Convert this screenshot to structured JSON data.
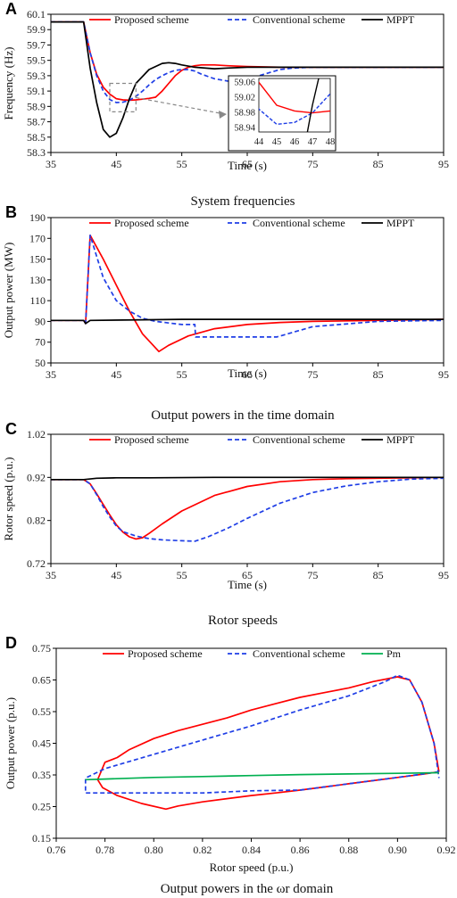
{
  "legend": {
    "proposed": "Proposed scheme",
    "conventional": "Conventional scheme",
    "mppt": "MPPT",
    "pm": "Pm"
  },
  "colors": {
    "proposed": "#ff0000",
    "conventional": "#1f3ee6",
    "mppt": "#000000",
    "pm": "#00b050"
  },
  "chart_data": [
    {
      "panel": "A",
      "type": "line",
      "caption": "System frequencies",
      "xlabel": "Time (s)",
      "ylabel": "Frequency (Hz)",
      "xlim": [
        35,
        95
      ],
      "ylim": [
        58.3,
        60.1
      ],
      "xticks": [
        "35",
        "45",
        "55",
        "65",
        "75",
        "85",
        "95"
      ],
      "yticks": [
        "58.3",
        "58.5",
        "58.7",
        "58.9",
        "59.1",
        "59.3",
        "59.5",
        "59.7",
        "59.9",
        "60.1"
      ],
      "series": [
        {
          "name": "Proposed scheme",
          "x": [
            35,
            40,
            41,
            42,
            43,
            44,
            45,
            46,
            47,
            48,
            49,
            50,
            51,
            52,
            53,
            54,
            55,
            56,
            57,
            58,
            59,
            60,
            62,
            65,
            70,
            75,
            80,
            85,
            95
          ],
          "y": [
            60.0,
            60.0,
            59.6,
            59.32,
            59.15,
            59.06,
            59.0,
            58.985,
            58.98,
            58.985,
            58.995,
            59.005,
            59.02,
            59.1,
            59.2,
            59.3,
            59.37,
            59.41,
            59.43,
            59.44,
            59.44,
            59.44,
            59.43,
            59.42,
            59.41,
            59.41,
            59.41,
            59.41,
            59.41
          ]
        },
        {
          "name": "Conventional scheme",
          "x": [
            35,
            40,
            41,
            42,
            43,
            44,
            45,
            46,
            47,
            48,
            49,
            50,
            51,
            52,
            53,
            54,
            55,
            56,
            57,
            58,
            60,
            62,
            64,
            66,
            68,
            70,
            72,
            75,
            80,
            95
          ],
          "y": [
            60.0,
            60.0,
            59.6,
            59.3,
            59.1,
            58.99,
            58.95,
            58.955,
            58.98,
            59.03,
            59.1,
            59.18,
            59.25,
            59.3,
            59.34,
            59.37,
            59.38,
            59.38,
            59.36,
            59.32,
            59.26,
            59.23,
            59.24,
            59.28,
            59.33,
            59.38,
            59.4,
            59.41,
            59.41,
            59.41
          ]
        },
        {
          "name": "MPPT",
          "x": [
            35,
            40,
            41,
            42,
            43,
            44,
            45,
            46,
            47,
            48,
            50,
            52,
            53,
            54,
            55,
            57,
            60,
            62,
            65,
            70,
            95
          ],
          "y": [
            60.0,
            60.0,
            59.4,
            58.95,
            58.6,
            58.5,
            58.55,
            58.75,
            59.0,
            59.2,
            59.38,
            59.46,
            59.47,
            59.46,
            59.44,
            59.41,
            59.39,
            59.4,
            59.41,
            59.41,
            59.41
          ]
        }
      ],
      "inset": {
        "xlim": [
          44,
          48
        ],
        "ylim": [
          58.93,
          59.07
        ],
        "xticks": [
          "44",
          "45",
          "46",
          "47",
          "48"
        ],
        "yticks": [
          "59.06",
          "59.02",
          "58.98",
          "58.94"
        ]
      }
    },
    {
      "panel": "B",
      "type": "line",
      "caption": "Output powers in the time domain",
      "xlabel": "Time (s)",
      "ylabel": "Output power (MW)",
      "xlim": [
        35,
        95
      ],
      "ylim": [
        50,
        190
      ],
      "xticks": [
        "35",
        "45",
        "55",
        "65",
        "75",
        "85",
        "95"
      ],
      "yticks": [
        "50",
        "70",
        "90",
        "110",
        "130",
        "150",
        "170",
        "190"
      ],
      "series": [
        {
          "name": "Proposed scheme",
          "x": [
            35,
            40,
            40.3,
            41,
            43,
            45,
            47,
            49,
            51.5,
            53,
            56,
            60,
            65,
            70,
            75,
            85,
            95
          ],
          "y": [
            91,
            91,
            88,
            173,
            150,
            125,
            100,
            78,
            61,
            67,
            76,
            83,
            87,
            89,
            90,
            91,
            92
          ]
        },
        {
          "name": "Conventional scheme",
          "x": [
            35,
            40,
            40.3,
            41,
            43,
            45,
            47,
            49,
            51,
            55,
            57,
            57.1,
            60,
            69.5,
            75,
            85,
            95
          ],
          "y": [
            91,
            91,
            88,
            173,
            132,
            110,
            100,
            93,
            90,
            87,
            87,
            75,
            75,
            75,
            85,
            90,
            91
          ]
        },
        {
          "name": "MPPT",
          "x": [
            35,
            40,
            40.3,
            41,
            55,
            70,
            95
          ],
          "y": [
            91,
            91,
            88,
            91,
            92,
            92,
            92
          ]
        }
      ]
    },
    {
      "panel": "C",
      "type": "line",
      "caption": "Rotor speeds",
      "xlabel": "Time (s)",
      "ylabel": "Rotor speed (p.u.)",
      "xlim": [
        35,
        95
      ],
      "ylim": [
        0.72,
        1.02
      ],
      "xticks": [
        "35",
        "45",
        "55",
        "65",
        "75",
        "85",
        "95"
      ],
      "yticks": [
        "0.72",
        "0.82",
        "0.92",
        "1.02"
      ],
      "series": [
        {
          "name": "Proposed scheme",
          "x": [
            35,
            40,
            41,
            42,
            43,
            44,
            45,
            46,
            47,
            48,
            49,
            50,
            52,
            55,
            60,
            65,
            70,
            75,
            80,
            85,
            90,
            95
          ],
          "y": [
            0.915,
            0.915,
            0.905,
            0.882,
            0.857,
            0.833,
            0.81,
            0.793,
            0.782,
            0.777,
            0.78,
            0.79,
            0.812,
            0.842,
            0.878,
            0.899,
            0.91,
            0.915,
            0.917,
            0.918,
            0.919,
            0.92
          ]
        },
        {
          "name": "Conventional scheme",
          "x": [
            35,
            40,
            41,
            42,
            43,
            44,
            45,
            46,
            48,
            50,
            52,
            55,
            57,
            59,
            62,
            65,
            70,
            75,
            80,
            85,
            90,
            95
          ],
          "y": [
            0.915,
            0.915,
            0.905,
            0.88,
            0.852,
            0.828,
            0.807,
            0.794,
            0.784,
            0.778,
            0.775,
            0.773,
            0.772,
            0.782,
            0.802,
            0.825,
            0.86,
            0.885,
            0.9,
            0.91,
            0.916,
            0.918
          ]
        },
        {
          "name": "MPPT",
          "x": [
            35,
            40,
            42,
            45,
            50,
            60,
            95
          ],
          "y": [
            0.915,
            0.915,
            0.918,
            0.919,
            0.919,
            0.92,
            0.92
          ]
        }
      ]
    },
    {
      "panel": "D",
      "type": "line",
      "caption": "Output powers in the ωr domain",
      "xlabel": "Rotor speed (p.u.)",
      "ylabel": "Output power (p.u.)",
      "xlim": [
        0.76,
        0.92
      ],
      "ylim": [
        0.15,
        0.75
      ],
      "xticks": [
        "0.76",
        "0.78",
        "0.80",
        "0.82",
        "0.84",
        "0.86",
        "0.88",
        "0.90",
        "0.92"
      ],
      "yticks": [
        "0.15",
        "0.25",
        "0.35",
        "0.45",
        "0.55",
        "0.65",
        "0.75"
      ],
      "series": [
        {
          "name": "Proposed scheme",
          "x": [
            0.917,
            0.91,
            0.9,
            0.89,
            0.88,
            0.87,
            0.86,
            0.85,
            0.84,
            0.83,
            0.82,
            0.81,
            0.805,
            0.795,
            0.785,
            0.779,
            0.777,
            0.78,
            0.785,
            0.79,
            0.8,
            0.81,
            0.82,
            0.83,
            0.84,
            0.85,
            0.86,
            0.87,
            0.88,
            0.89,
            0.9,
            0.905,
            0.91,
            0.915,
            0.917
          ],
          "y": [
            0.36,
            0.352,
            0.342,
            0.332,
            0.322,
            0.312,
            0.302,
            0.293,
            0.285,
            0.275,
            0.265,
            0.252,
            0.242,
            0.26,
            0.285,
            0.31,
            0.335,
            0.39,
            0.405,
            0.43,
            0.465,
            0.49,
            0.51,
            0.53,
            0.555,
            0.575,
            0.595,
            0.61,
            0.625,
            0.645,
            0.66,
            0.65,
            0.58,
            0.45,
            0.36
          ]
        },
        {
          "name": "Conventional scheme",
          "x": [
            0.917,
            0.9,
            0.88,
            0.86,
            0.84,
            0.82,
            0.8,
            0.78,
            0.775,
            0.772,
            0.772,
            0.78,
            0.8,
            0.82,
            0.84,
            0.86,
            0.88,
            0.895,
            0.9,
            0.905,
            0.91,
            0.915,
            0.917
          ],
          "y": [
            0.36,
            0.342,
            0.322,
            0.302,
            0.3,
            0.293,
            0.293,
            0.293,
            0.293,
            0.293,
            0.34,
            0.37,
            0.415,
            0.46,
            0.505,
            0.555,
            0.6,
            0.645,
            0.665,
            0.65,
            0.58,
            0.45,
            0.34
          ]
        },
        {
          "name": "Pm",
          "x": [
            0.772,
            0.78,
            0.8,
            0.82,
            0.84,
            0.86,
            0.88,
            0.9,
            0.917
          ],
          "y": [
            0.335,
            0.337,
            0.342,
            0.345,
            0.348,
            0.351,
            0.353,
            0.355,
            0.357
          ]
        }
      ]
    }
  ]
}
